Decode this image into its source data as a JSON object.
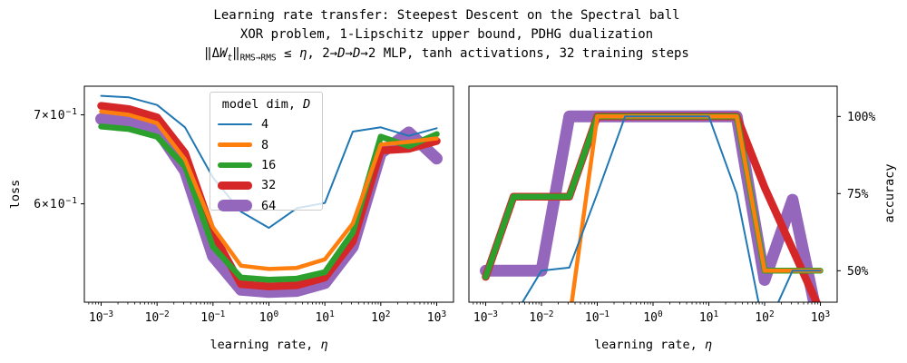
{
  "figure_title": {
    "line1": "Learning rate transfer: Steepest Descent on the Spectral ball",
    "line2": "XOR problem, 1-Lipschitz upper bound, PDHG dualization",
    "line3_segments": [
      {
        "t": "‖Δ"
      },
      {
        "t": "W",
        "i": true
      },
      {
        "t": "t",
        "i": true,
        "sub": true
      },
      {
        "t": "‖"
      },
      {
        "t": "RMS→RMS",
        "sub": true
      },
      {
        "t": " ≤ "
      },
      {
        "t": "η",
        "i": true
      },
      {
        "t": ",  2→"
      },
      {
        "t": "D",
        "i": true
      },
      {
        "t": "→"
      },
      {
        "t": "D",
        "i": true
      },
      {
        "t": "→2 MLP, tanh activations, 32 training steps"
      }
    ]
  },
  "legend": {
    "title_segments": [
      {
        "t": "model dim, "
      },
      {
        "t": "D",
        "i": true
      }
    ],
    "entry_labels": [
      "4",
      "8",
      "16",
      "32",
      "64"
    ]
  },
  "chart_data": [
    {
      "type": "line",
      "id": "loss",
      "xscale": "log",
      "yscale": "log",
      "xlabel_segments": [
        {
          "t": "learning rate, "
        },
        {
          "t": "η",
          "i": true
        }
      ],
      "ylabel": "loss",
      "xlim_log10": [
        -3.3,
        3.3
      ],
      "ylim": [
        0.506,
        0.7356
      ],
      "x_log10": [
        -3,
        -2.5,
        -2,
        -1.5,
        -1,
        -0.5,
        0,
        0.5,
        1,
        1.5,
        2,
        2.5,
        3
      ],
      "xticks": [
        {
          "value": -3,
          "base": "10",
          "exp": "−3"
        },
        {
          "value": -2,
          "base": "10",
          "exp": "−2"
        },
        {
          "value": -1,
          "base": "10",
          "exp": "−1"
        },
        {
          "value": 0,
          "base": "10",
          "exp": "0"
        },
        {
          "value": 1,
          "base": "10",
          "exp": "1"
        },
        {
          "value": 2,
          "base": "10",
          "exp": "2"
        },
        {
          "value": 3,
          "base": "10",
          "exp": "3"
        }
      ],
      "yticks": [
        {
          "value": 0.7,
          "base": "7×10",
          "exp": "−1"
        },
        {
          "value": 0.6,
          "base": "6×10",
          "exp": "−1"
        }
      ],
      "yticks_side": "left",
      "series": [
        {
          "name": "4",
          "color": "#1f77b4",
          "lw": 2,
          "values": [
            0.7235,
            0.7215,
            0.712,
            0.685,
            0.628,
            0.592,
            0.5755,
            0.5955,
            0.601,
            0.68,
            0.685,
            0.675,
            0.684
          ]
        },
        {
          "name": "8",
          "color": "#ff7f0e",
          "lw": 4.5,
          "values": [
            0.704,
            0.7,
            0.69,
            0.648,
            0.576,
            0.539,
            0.536,
            0.537,
            0.545,
            0.58,
            0.665,
            0.668,
            0.672
          ]
        },
        {
          "name": "16",
          "color": "#2ca02c",
          "lw": 6.5,
          "values": [
            0.686,
            0.683,
            0.674,
            0.64,
            0.557,
            0.528,
            0.526,
            0.527,
            0.533,
            0.571,
            0.674,
            0.663,
            0.677
          ]
        },
        {
          "name": "32",
          "color": "#d62728",
          "lw": 8.5,
          "values": [
            0.711,
            0.707,
            0.697,
            0.655,
            0.57,
            0.522,
            0.52,
            0.521,
            0.528,
            0.562,
            0.658,
            0.66,
            0.669
          ]
        },
        {
          "name": "64",
          "color": "#9467bd",
          "lw": 13,
          "values": [
            0.695,
            0.692,
            0.682,
            0.635,
            0.548,
            0.517,
            0.515,
            0.516,
            0.523,
            0.557,
            0.655,
            0.679,
            0.649
          ]
        }
      ]
    },
    {
      "type": "line",
      "id": "accuracy",
      "xscale": "log",
      "yscale": "linear",
      "xlabel_segments": [
        {
          "t": "learning rate, "
        },
        {
          "t": "η",
          "i": true
        }
      ],
      "ylabel": "accuracy",
      "xlim_log10": [
        -3.3,
        3.3
      ],
      "ylim": [
        39.8,
        109.8
      ],
      "x_log10": [
        -3,
        -2.5,
        -2,
        -1.5,
        -1,
        -0.5,
        0,
        0.5,
        1,
        1.5,
        2,
        2.5,
        3
      ],
      "xticks": [
        {
          "value": -3,
          "base": "10",
          "exp": "−3"
        },
        {
          "value": -2,
          "base": "10",
          "exp": "−2"
        },
        {
          "value": -1,
          "base": "10",
          "exp": "−1"
        },
        {
          "value": 0,
          "base": "10",
          "exp": "0"
        },
        {
          "value": 1,
          "base": "10",
          "exp": "1"
        },
        {
          "value": 2,
          "base": "10",
          "exp": "2"
        },
        {
          "value": 3,
          "base": "10",
          "exp": "3"
        }
      ],
      "yticks": [
        {
          "value": 100,
          "text": "100%"
        },
        {
          "value": 75,
          "text": "75%"
        },
        {
          "value": 50,
          "text": "50%"
        }
      ],
      "yticks_side": "right",
      "series": [
        {
          "name": "4",
          "color": "#1f77b4",
          "lw": 2,
          "values": [
            25,
            35,
            50,
            51,
            75,
            100,
            100,
            100,
            100,
            75,
            30,
            50,
            50
          ]
        },
        {
          "name": "8",
          "color": "#ff7f0e",
          "lw": 4.5,
          "values": [
            36,
            36,
            36,
            34,
            100,
            100,
            100,
            100,
            100,
            100,
            50,
            50,
            50
          ]
        },
        {
          "name": "16",
          "color": "#2ca02c",
          "lw": 6.5,
          "values": [
            48,
            74,
            74,
            74,
            100,
            100,
            100,
            100,
            100,
            100,
            50,
            50,
            50
          ]
        },
        {
          "name": "32",
          "color": "#d62728",
          "lw": 8.5,
          "values": [
            48,
            74,
            74,
            74,
            100,
            100,
            100,
            100,
            100,
            100,
            77,
            57,
            37
          ]
        },
        {
          "name": "64",
          "color": "#9467bd",
          "lw": 13,
          "values": [
            50,
            50,
            50,
            100,
            100,
            100,
            100,
            100,
            100,
            100,
            47,
            73,
            30
          ]
        }
      ]
    }
  ]
}
